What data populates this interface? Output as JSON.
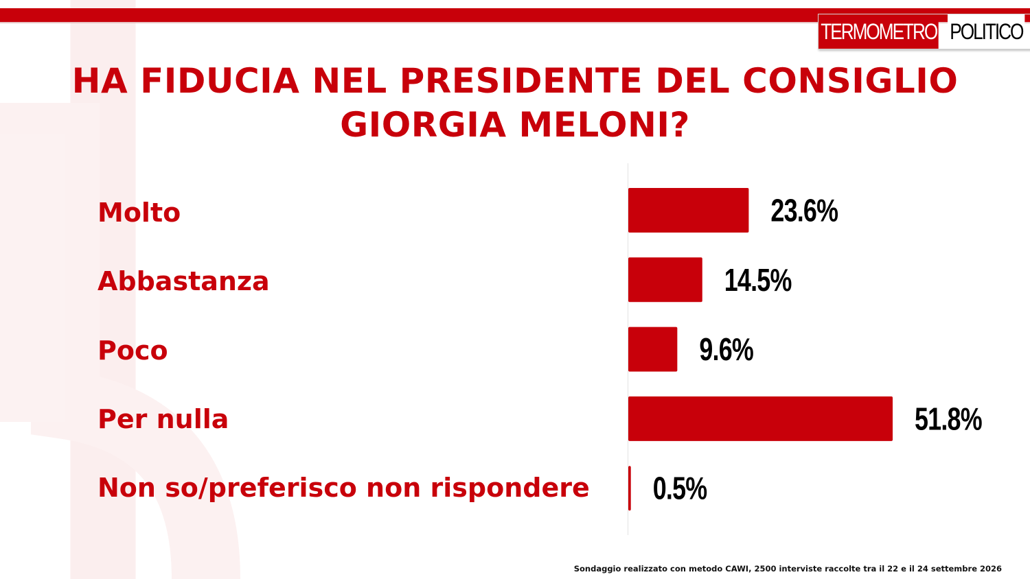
{
  "logo": {
    "part1": "TERMOMETRO",
    "part2": "POLITICO"
  },
  "chart_data": {
    "type": "bar",
    "orientation": "horizontal",
    "title_lines": [
      "HA FIDUCIA NEL PRESIDENTE DEL CONSIGLIO",
      "GIORGIA MELONI?"
    ],
    "categories": [
      "Molto",
      "Abbastanza",
      "Poco",
      "Per nulla",
      "Non so/preferisco non rispondere"
    ],
    "values": [
      23.6,
      14.5,
      9.6,
      51.8,
      0.5
    ],
    "value_labels": [
      "23.6%",
      "14.5%",
      "9.6%",
      "51.8%",
      "0.5%"
    ],
    "xlabel": "",
    "ylabel": "",
    "xlim": [
      0,
      100
    ],
    "grid": false,
    "legend": "none",
    "bar_color": "#c8000a",
    "label_color": "#c8000a"
  },
  "footer": "Sondaggio realizzato con metodo CAWI, 2500 interviste raccolte tra il 22 e il 24  settembre  2026"
}
